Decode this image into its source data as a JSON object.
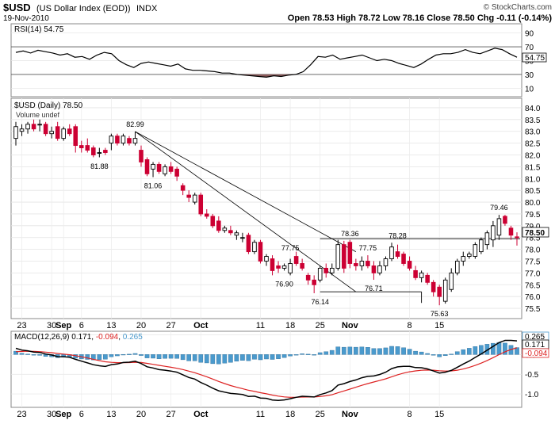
{
  "header": {
    "symbol": "$USD",
    "name": "(US Dollar Index (EOD))",
    "exchange": "INDX",
    "watermark": "© StockCharts.com",
    "date": "19-Nov-2010",
    "ohlc": "Open 78.53 High 78.72 Low 78.16 Close 78.50 Chg -0.11 (-0.14%)",
    "ohlc_parts": [
      {
        "label": "Open",
        "value": "78.53"
      },
      {
        "label": "High",
        "value": "78.72"
      },
      {
        "label": "Low",
        "value": "78.16"
      },
      {
        "label": "Close",
        "value": "78.50"
      },
      {
        "label": "Chg",
        "value": "-0.11 (-0.14%)"
      }
    ]
  },
  "rsi": {
    "label": "RSI(14) 54.75",
    "last_value": "54.75",
    "ticks": [
      "90",
      "70",
      "50",
      "30",
      "10"
    ],
    "values": [
      62,
      64,
      61,
      65,
      63,
      61,
      58,
      60,
      55,
      56,
      52,
      58,
      62,
      60,
      50,
      44,
      40,
      46,
      48,
      46,
      44,
      42,
      45,
      38,
      36,
      36,
      35,
      34,
      32,
      32,
      30,
      29,
      28,
      27,
      26,
      28,
      27,
      29,
      30,
      34,
      44,
      56,
      55,
      58,
      52,
      54,
      56,
      58,
      54,
      50,
      52,
      50,
      46,
      43,
      40,
      45,
      52,
      58,
      60,
      60,
      62,
      66,
      62,
      60,
      64,
      68,
      66,
      60,
      55
    ],
    "levels": [
      70,
      30
    ],
    "colors": {
      "line": "#000000",
      "oversold_fill": "#8b5a5a"
    }
  },
  "price": {
    "label": "$USD (Daily) 78.50",
    "sublabel": "Volume undef",
    "last_label": "78.50",
    "yticks": [
      "84.0",
      "83.5",
      "83.0",
      "82.5",
      "82.0",
      "81.5",
      "81.0",
      "80.5",
      "80.0",
      "79.5",
      "79.0",
      "78.5",
      "78.0",
      "77.5",
      "77.0",
      "76.5",
      "76.0",
      "75.5"
    ],
    "ylim": [
      75.2,
      84.3
    ],
    "annotations": [
      {
        "text": "82.99",
        "index": 20,
        "value": 82.99,
        "pos": "above"
      },
      {
        "text": "81.88",
        "index": 14,
        "value": 81.88,
        "pos": "below"
      },
      {
        "text": "81.06",
        "index": 23,
        "value": 81.06,
        "pos": "below"
      },
      {
        "text": "77.75",
        "index": 46,
        "value": 77.75,
        "pos": "above"
      },
      {
        "text": "76.90",
        "index": 45,
        "value": 76.9,
        "pos": "below"
      },
      {
        "text": "76.14",
        "index": 51,
        "value": 76.14,
        "pos": "below"
      },
      {
        "text": "78.36",
        "index": 56,
        "value": 78.36,
        "pos": "above"
      },
      {
        "text": "77.75",
        "index": 59,
        "value": 77.75,
        "pos": "above"
      },
      {
        "text": "78.28",
        "index": 64,
        "value": 78.28,
        "pos": "above"
      },
      {
        "text": "76.71",
        "index": 60,
        "value": 76.71,
        "pos": "below"
      },
      {
        "text": "75.63",
        "index": 71,
        "value": 75.63,
        "pos": "below"
      },
      {
        "text": "79.46",
        "index": 81,
        "value": 79.46,
        "pos": "above"
      }
    ],
    "colors": {
      "up": "#ffffff",
      "down": "#cc0033",
      "outline": "#000000"
    }
  },
  "chart_data": {
    "type": "candlestick",
    "title": "$USD (Daily) 78.50",
    "ylim": [
      75.2,
      84.3
    ],
    "x_labels": [
      "23",
      "30",
      "Sep",
      "6",
      "13",
      "20",
      "27",
      "Oct",
      "11",
      "18",
      "25",
      "Nov",
      "8",
      "15"
    ],
    "candles": [
      {
        "o": 82.7,
        "h": 83.4,
        "l": 82.4,
        "c": 83.2
      },
      {
        "o": 83.0,
        "h": 83.3,
        "l": 82.8,
        "c": 83.1
      },
      {
        "o": 83.1,
        "h": 83.4,
        "l": 82.9,
        "c": 83.3
      },
      {
        "o": 83.3,
        "h": 83.5,
        "l": 83.0,
        "c": 83.1
      },
      {
        "o": 83.3,
        "h": 83.5,
        "l": 83.0,
        "c": 83.3
      },
      {
        "o": 83.3,
        "h": 83.4,
        "l": 82.8,
        "c": 82.9
      },
      {
        "o": 82.9,
        "h": 83.2,
        "l": 82.7,
        "c": 83.0
      },
      {
        "o": 83.2,
        "h": 83.4,
        "l": 82.6,
        "c": 82.7
      },
      {
        "o": 82.7,
        "h": 83.2,
        "l": 82.6,
        "c": 83.1
      },
      {
        "o": 83.1,
        "h": 83.3,
        "l": 82.8,
        "c": 82.9
      },
      {
        "o": 83.2,
        "h": 83.3,
        "l": 82.1,
        "c": 82.4
      },
      {
        "o": 82.4,
        "h": 82.6,
        "l": 82.1,
        "c": 82.3
      },
      {
        "o": 82.4,
        "h": 82.7,
        "l": 82.1,
        "c": 82.2
      },
      {
        "o": 82.3,
        "h": 82.4,
        "l": 81.9,
        "c": 82.0
      },
      {
        "o": 82.1,
        "h": 82.3,
        "l": 81.9,
        "c": 82.1
      },
      {
        "o": 82.2,
        "h": 82.3,
        "l": 82.0,
        "c": 82.1
      },
      {
        "o": 82.5,
        "h": 82.9,
        "l": 82.2,
        "c": 82.8
      },
      {
        "o": 82.8,
        "h": 82.9,
        "l": 82.4,
        "c": 82.5
      },
      {
        "o": 82.5,
        "h": 82.9,
        "l": 82.4,
        "c": 82.8
      },
      {
        "o": 82.7,
        "h": 82.8,
        "l": 82.4,
        "c": 82.5
      },
      {
        "o": 82.5,
        "h": 82.99,
        "l": 82.4,
        "c": 82.7
      },
      {
        "o": 82.2,
        "h": 82.4,
        "l": 81.5,
        "c": 81.7
      },
      {
        "o": 81.8,
        "h": 81.9,
        "l": 81.1,
        "c": 81.2
      },
      {
        "o": 81.4,
        "h": 81.7,
        "l": 81.06,
        "c": 81.6
      },
      {
        "o": 81.6,
        "h": 81.7,
        "l": 81.2,
        "c": 81.3
      },
      {
        "o": 81.2,
        "h": 81.6,
        "l": 81.1,
        "c": 81.5
      },
      {
        "o": 81.5,
        "h": 81.7,
        "l": 81.2,
        "c": 81.3
      },
      {
        "o": 81.4,
        "h": 81.5,
        "l": 80.9,
        "c": 81.1
      },
      {
        "o": 80.7,
        "h": 80.8,
        "l": 80.3,
        "c": 80.5
      },
      {
        "o": 80.3,
        "h": 80.5,
        "l": 80.0,
        "c": 80.2
      },
      {
        "o": 80.0,
        "h": 80.4,
        "l": 79.9,
        "c": 80.3
      },
      {
        "o": 80.3,
        "h": 80.4,
        "l": 79.4,
        "c": 79.5
      },
      {
        "o": 79.5,
        "h": 79.7,
        "l": 79.3,
        "c": 79.4
      },
      {
        "o": 79.4,
        "h": 79.5,
        "l": 78.9,
        "c": 79.0
      },
      {
        "o": 79.2,
        "h": 79.4,
        "l": 78.7,
        "c": 78.8
      },
      {
        "o": 78.8,
        "h": 79.0,
        "l": 78.7,
        "c": 78.9
      },
      {
        "o": 78.8,
        "h": 79.0,
        "l": 78.6,
        "c": 78.7
      },
      {
        "o": 78.6,
        "h": 78.8,
        "l": 78.4,
        "c": 78.7
      },
      {
        "o": 78.5,
        "h": 78.7,
        "l": 78.3,
        "c": 78.5
      },
      {
        "o": 78.6,
        "h": 78.7,
        "l": 77.8,
        "c": 77.9
      },
      {
        "o": 77.9,
        "h": 78.4,
        "l": 77.8,
        "c": 78.3
      },
      {
        "o": 78.3,
        "h": 78.4,
        "l": 77.4,
        "c": 77.5
      },
      {
        "o": 77.5,
        "h": 77.8,
        "l": 77.3,
        "c": 77.7
      },
      {
        "o": 77.6,
        "h": 77.75,
        "l": 76.9,
        "c": 77.1
      },
      {
        "o": 77.3,
        "h": 77.5,
        "l": 77.0,
        "c": 77.2
      },
      {
        "o": 77.2,
        "h": 77.4,
        "l": 77.1,
        "c": 77.3
      },
      {
        "o": 77.0,
        "h": 77.6,
        "l": 76.9,
        "c": 77.4
      },
      {
        "o": 77.7,
        "h": 77.9,
        "l": 77.3,
        "c": 77.4
      },
      {
        "o": 77.4,
        "h": 77.6,
        "l": 77.1,
        "c": 77.2
      },
      {
        "o": 76.9,
        "h": 77.0,
        "l": 76.5,
        "c": 76.7
      },
      {
        "o": 76.7,
        "h": 76.9,
        "l": 76.14,
        "c": 76.5
      },
      {
        "o": 76.7,
        "h": 77.3,
        "l": 76.6,
        "c": 77.2
      },
      {
        "o": 77.2,
        "h": 77.4,
        "l": 76.8,
        "c": 77.0
      },
      {
        "o": 77.0,
        "h": 77.4,
        "l": 76.9,
        "c": 77.2
      },
      {
        "o": 77.2,
        "h": 78.4,
        "l": 77.1,
        "c": 78.2
      },
      {
        "o": 78.2,
        "h": 78.36,
        "l": 77.0,
        "c": 77.2
      },
      {
        "o": 78.3,
        "h": 78.4,
        "l": 77.2,
        "c": 77.4
      },
      {
        "o": 77.4,
        "h": 77.6,
        "l": 77.1,
        "c": 77.3
      },
      {
        "o": 77.3,
        "h": 77.7,
        "l": 77.1,
        "c": 77.5
      },
      {
        "o": 77.5,
        "h": 77.75,
        "l": 77.2,
        "c": 77.3
      },
      {
        "o": 77.3,
        "h": 77.5,
        "l": 76.71,
        "c": 77.0
      },
      {
        "o": 77.0,
        "h": 77.5,
        "l": 76.9,
        "c": 77.3
      },
      {
        "o": 77.3,
        "h": 77.7,
        "l": 77.1,
        "c": 77.6
      },
      {
        "o": 77.6,
        "h": 78.28,
        "l": 77.5,
        "c": 78.1
      },
      {
        "o": 77.9,
        "h": 78.2,
        "l": 77.6,
        "c": 77.7
      },
      {
        "o": 77.8,
        "h": 77.9,
        "l": 77.3,
        "c": 77.4
      },
      {
        "o": 77.5,
        "h": 77.7,
        "l": 77.1,
        "c": 77.2
      },
      {
        "o": 77.1,
        "h": 77.3,
        "l": 76.7,
        "c": 76.8
      },
      {
        "o": 76.8,
        "h": 77.1,
        "l": 76.6,
        "c": 77.0
      },
      {
        "o": 76.9,
        "h": 77.0,
        "l": 76.5,
        "c": 76.6
      },
      {
        "o": 76.6,
        "h": 76.7,
        "l": 76.0,
        "c": 76.2
      },
      {
        "o": 76.4,
        "h": 76.5,
        "l": 75.63,
        "c": 76.0
      },
      {
        "o": 75.8,
        "h": 76.8,
        "l": 75.7,
        "c": 76.7
      },
      {
        "o": 76.3,
        "h": 77.2,
        "l": 76.2,
        "c": 77.0
      },
      {
        "o": 77.0,
        "h": 77.6,
        "l": 76.9,
        "c": 77.5
      },
      {
        "o": 77.5,
        "h": 77.9,
        "l": 77.3,
        "c": 77.7
      },
      {
        "o": 77.7,
        "h": 77.9,
        "l": 77.6,
        "c": 77.8
      },
      {
        "o": 77.7,
        "h": 78.3,
        "l": 77.6,
        "c": 78.2
      },
      {
        "o": 77.9,
        "h": 78.5,
        "l": 77.8,
        "c": 78.4
      },
      {
        "o": 78.2,
        "h": 78.8,
        "l": 78.0,
        "c": 78.7
      },
      {
        "o": 78.4,
        "h": 79.2,
        "l": 78.1,
        "c": 79.0
      },
      {
        "o": 78.6,
        "h": 79.46,
        "l": 78.4,
        "c": 79.3
      },
      {
        "o": 79.4,
        "h": 79.46,
        "l": 79.0,
        "c": 79.1
      },
      {
        "o": 78.9,
        "h": 79.0,
        "l": 78.4,
        "c": 78.6
      },
      {
        "o": 78.53,
        "h": 78.72,
        "l": 78.16,
        "c": 78.5
      }
    ],
    "trend_lines": [
      {
        "from": [
          20,
          82.99
        ],
        "to": [
          57,
          77.9
        ]
      },
      {
        "from": [
          20,
          82.99
        ],
        "to": [
          57,
          76.2
        ]
      }
    ],
    "resistance": {
      "from_index": 51,
      "value": 78.45
    },
    "support": {
      "from_index": 51,
      "to_index": 68,
      "value": 76.2
    }
  },
  "macd": {
    "label": "MACD(12,26,9) 0.171, -0.094, 0.265",
    "label_name": "MACD(12,26,9)",
    "label_macd": "0.171",
    "label_signal": "-0.094",
    "label_hist": "0.265",
    "yticks": [
      "0.5",
      "0.0",
      "-0.5",
      "-1.0"
    ],
    "ylim": [
      -1.3,
      0.55
    ],
    "last_labels": [
      "0.265",
      "0.171",
      "-0.094"
    ],
    "colors": {
      "macd": "#000000",
      "signal": "#dd2222",
      "hist": "#4a9acd"
    }
  },
  "xaxis": {
    "labels": [
      {
        "text": "23",
        "index": 1
      },
      {
        "text": "30",
        "index": 6
      },
      {
        "text": "Sep",
        "index": 8
      },
      {
        "text": "6",
        "index": 11
      },
      {
        "text": "13",
        "index": 16
      },
      {
        "text": "20",
        "index": 21
      },
      {
        "text": "27",
        "index": 26
      },
      {
        "text": "Oct",
        "index": 31
      },
      {
        "text": "11",
        "index": 41
      },
      {
        "text": "18",
        "index": 46
      },
      {
        "text": "25",
        "index": 51
      },
      {
        "text": "Nov",
        "index": 56
      },
      {
        "text": "8",
        "index": 66
      },
      {
        "text": "15",
        "index": 71
      }
    ]
  }
}
